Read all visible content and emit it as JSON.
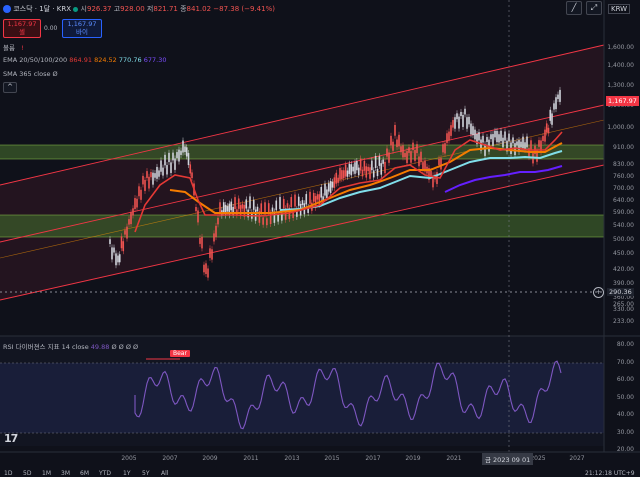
{
  "header": {
    "symbol": "코스닥 · 1달 · KRX",
    "open_label": "시",
    "open": "926.37",
    "high_label": "고",
    "high": "928.00",
    "low_label": "저",
    "low": "821.71",
    "close_label": "종",
    "close": "841.02",
    "change": "−87.38 (−9.41%)",
    "sell_price": "1,167.97",
    "sell_label": "셀",
    "spread": "0.00",
    "buy_price": "1,167.97",
    "buy_label": "바이",
    "currency": "KRW"
  },
  "legend": {
    "volume_label": "볼륨",
    "ema_label": "EMA 20/50/100/200",
    "ema20": "864.91",
    "ema50": "824.52",
    "ema100": "770.76",
    "ema200": "677.30",
    "sma_label": "SMA 365 close",
    "sma_value": "Ø",
    "rsi_label": "RSI 다이버젼스 지표 14 close",
    "rsi_value": "49.88",
    "rsi_extra": "Ø Ø Ø Ø",
    "bear_label": "Bear"
  },
  "price_axis": {
    "labels": [
      "1,600.00",
      "1,400.00",
      "1,300.00",
      "1,100.00",
      "1,000.00",
      "910.00",
      "830.00",
      "760.00",
      "700.00",
      "640.00",
      "590.00",
      "540.00",
      "500.00",
      "450.00",
      "420.00",
      "390.00",
      "360.00",
      "330.00",
      "265.00",
      "233.00"
    ],
    "current_price": "1,167.97",
    "marker_price": "290.36"
  },
  "rsi_axis": {
    "labels": [
      "80.00",
      "70.00",
      "60.00",
      "50.00",
      "40.00",
      "30.00",
      "20.00"
    ]
  },
  "time_axis": {
    "labels": [
      "2005",
      "2007",
      "2009",
      "2011",
      "2013",
      "2015",
      "2017",
      "2019",
      "2021",
      "2025",
      "2027"
    ],
    "cursor_label": "금 2023 09 01"
  },
  "toolbar": {
    "ranges": [
      "1D",
      "5D",
      "1M",
      "3M",
      "6M",
      "YTD",
      "1Y",
      "5Y",
      "All"
    ],
    "clock": "21:12:18 UTC+9"
  },
  "colors": {
    "ema20": "#e53935",
    "ema50": "#f57c00",
    "ema100": "#80deea",
    "ema200": "#651fff",
    "rsi": "#7e57c2",
    "channel": "#f23645",
    "zone": "#4caf50",
    "up": "#d1d4dc",
    "down": "#ef5350"
  },
  "icons": [
    "chart-logo-icon",
    "eye-icon",
    "drawing-pen-icon",
    "fullscreen-icon",
    "collapse-icon",
    "tradingview-logo-icon",
    "price-marker-icon"
  ]
}
